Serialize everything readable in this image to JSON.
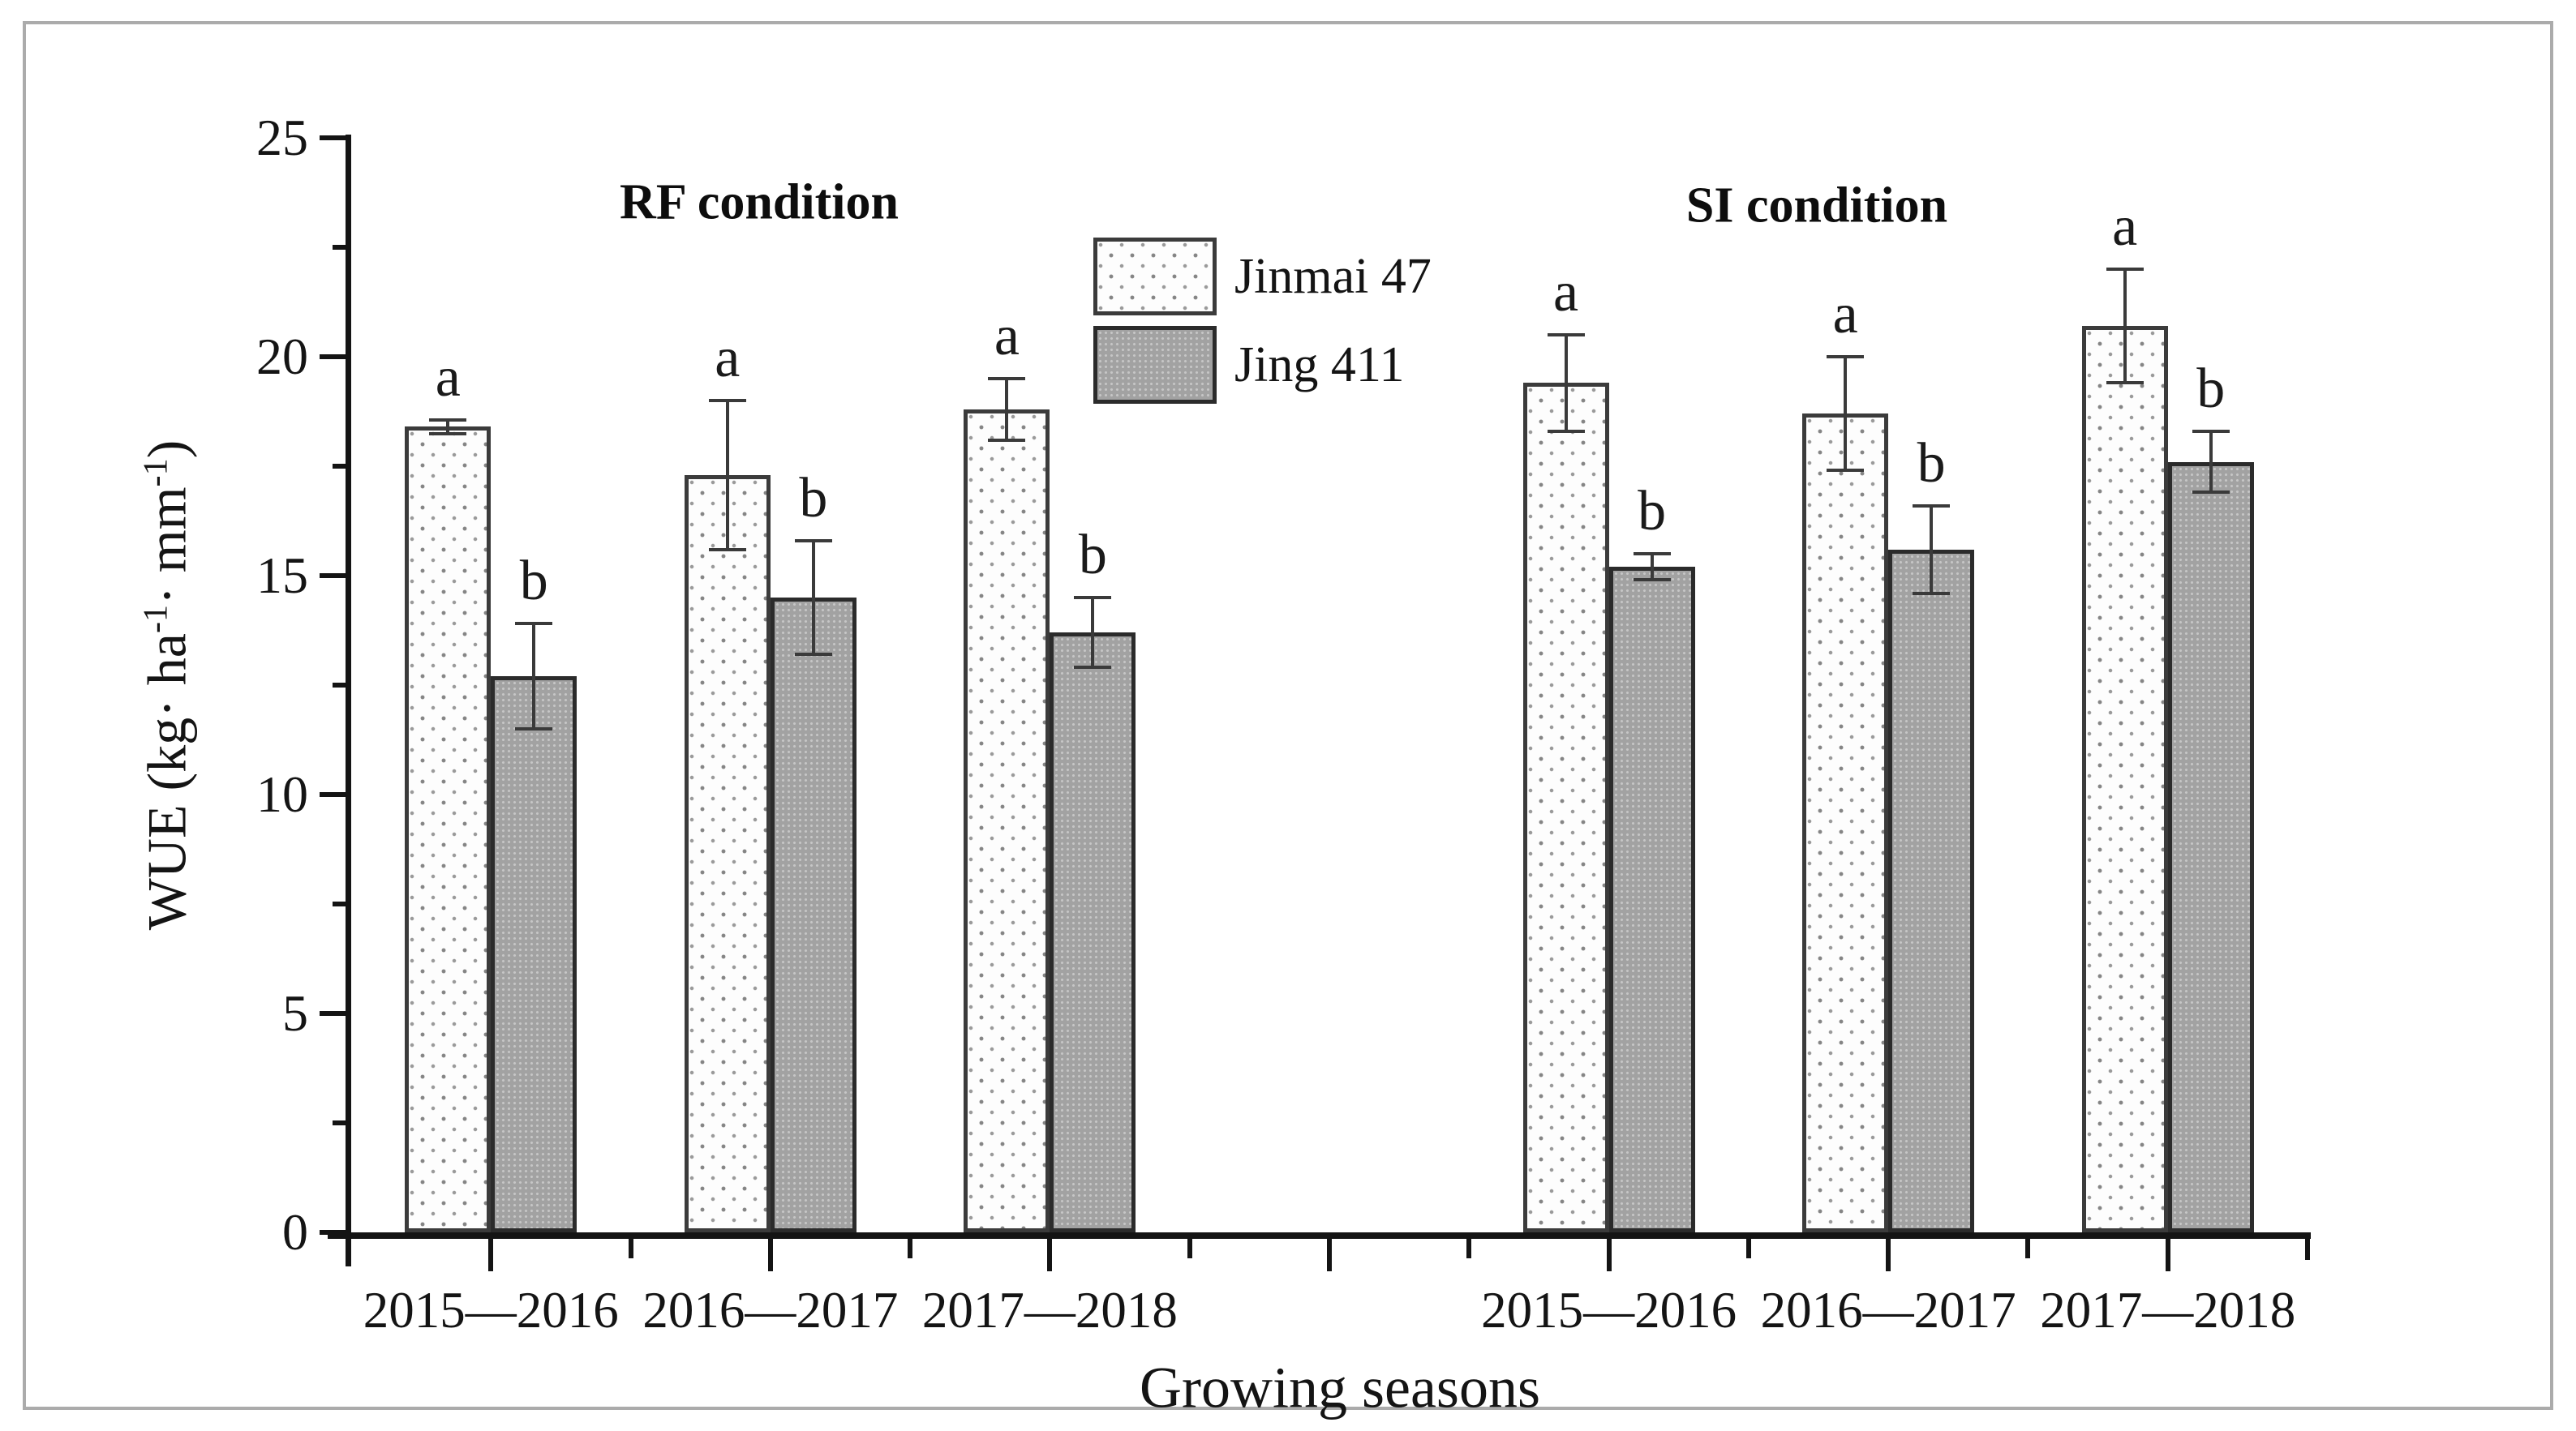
{
  "chart_data": {
    "type": "bar",
    "title": "",
    "xlabel": "Growing seasons",
    "ylabel_plain": "WUE (kg· ha-1· mm-1)",
    "ylabel_parts": [
      {
        "text": "WUE (kg· ha"
      },
      {
        "text": "-1",
        "sup": true
      },
      {
        "text": "· mm"
      },
      {
        "text": "-1",
        "sup": true
      },
      {
        "text": ")"
      }
    ],
    "condition_labels": [
      "RF condition",
      "SI condition"
    ],
    "ylim": [
      0,
      25
    ],
    "yticks": [
      0,
      5,
      10,
      15,
      20,
      25
    ],
    "ytick_minor_step": 2.5,
    "grid": false,
    "legend_position": "inside-top-center-left",
    "categories": [
      "2015—2016",
      "2016—2017",
      "2017—2018",
      "",
      "2015—2016",
      "2016—2017",
      "2017—2018"
    ],
    "series": [
      {
        "name": "Jinmai 47",
        "pattern": "white-dotted",
        "values": [
          18.4,
          17.3,
          18.8,
          null,
          19.4,
          18.7,
          20.7
        ],
        "errors": [
          0.15,
          1.7,
          0.7,
          null,
          1.1,
          1.3,
          1.3
        ],
        "letters": [
          "a",
          "a",
          "a",
          "",
          "a",
          "a",
          "a"
        ]
      },
      {
        "name": "Jing 411",
        "pattern": "gray-dotted",
        "values": [
          12.7,
          14.5,
          13.7,
          null,
          15.2,
          15.6,
          17.6
        ],
        "errors": [
          1.2,
          1.3,
          0.8,
          null,
          0.3,
          1.0,
          0.7
        ],
        "letters": [
          "b",
          "b",
          "b",
          "",
          "b",
          "b",
          "b"
        ]
      }
    ],
    "colors": {
      "jinmai_fill": "#fdfdfd",
      "jing_fill": "#a2a2a2",
      "bar_border": "#3b3b3b",
      "axis": "#141414",
      "frame_border": "#ababab",
      "error_bar": "#3a3a3a"
    }
  }
}
